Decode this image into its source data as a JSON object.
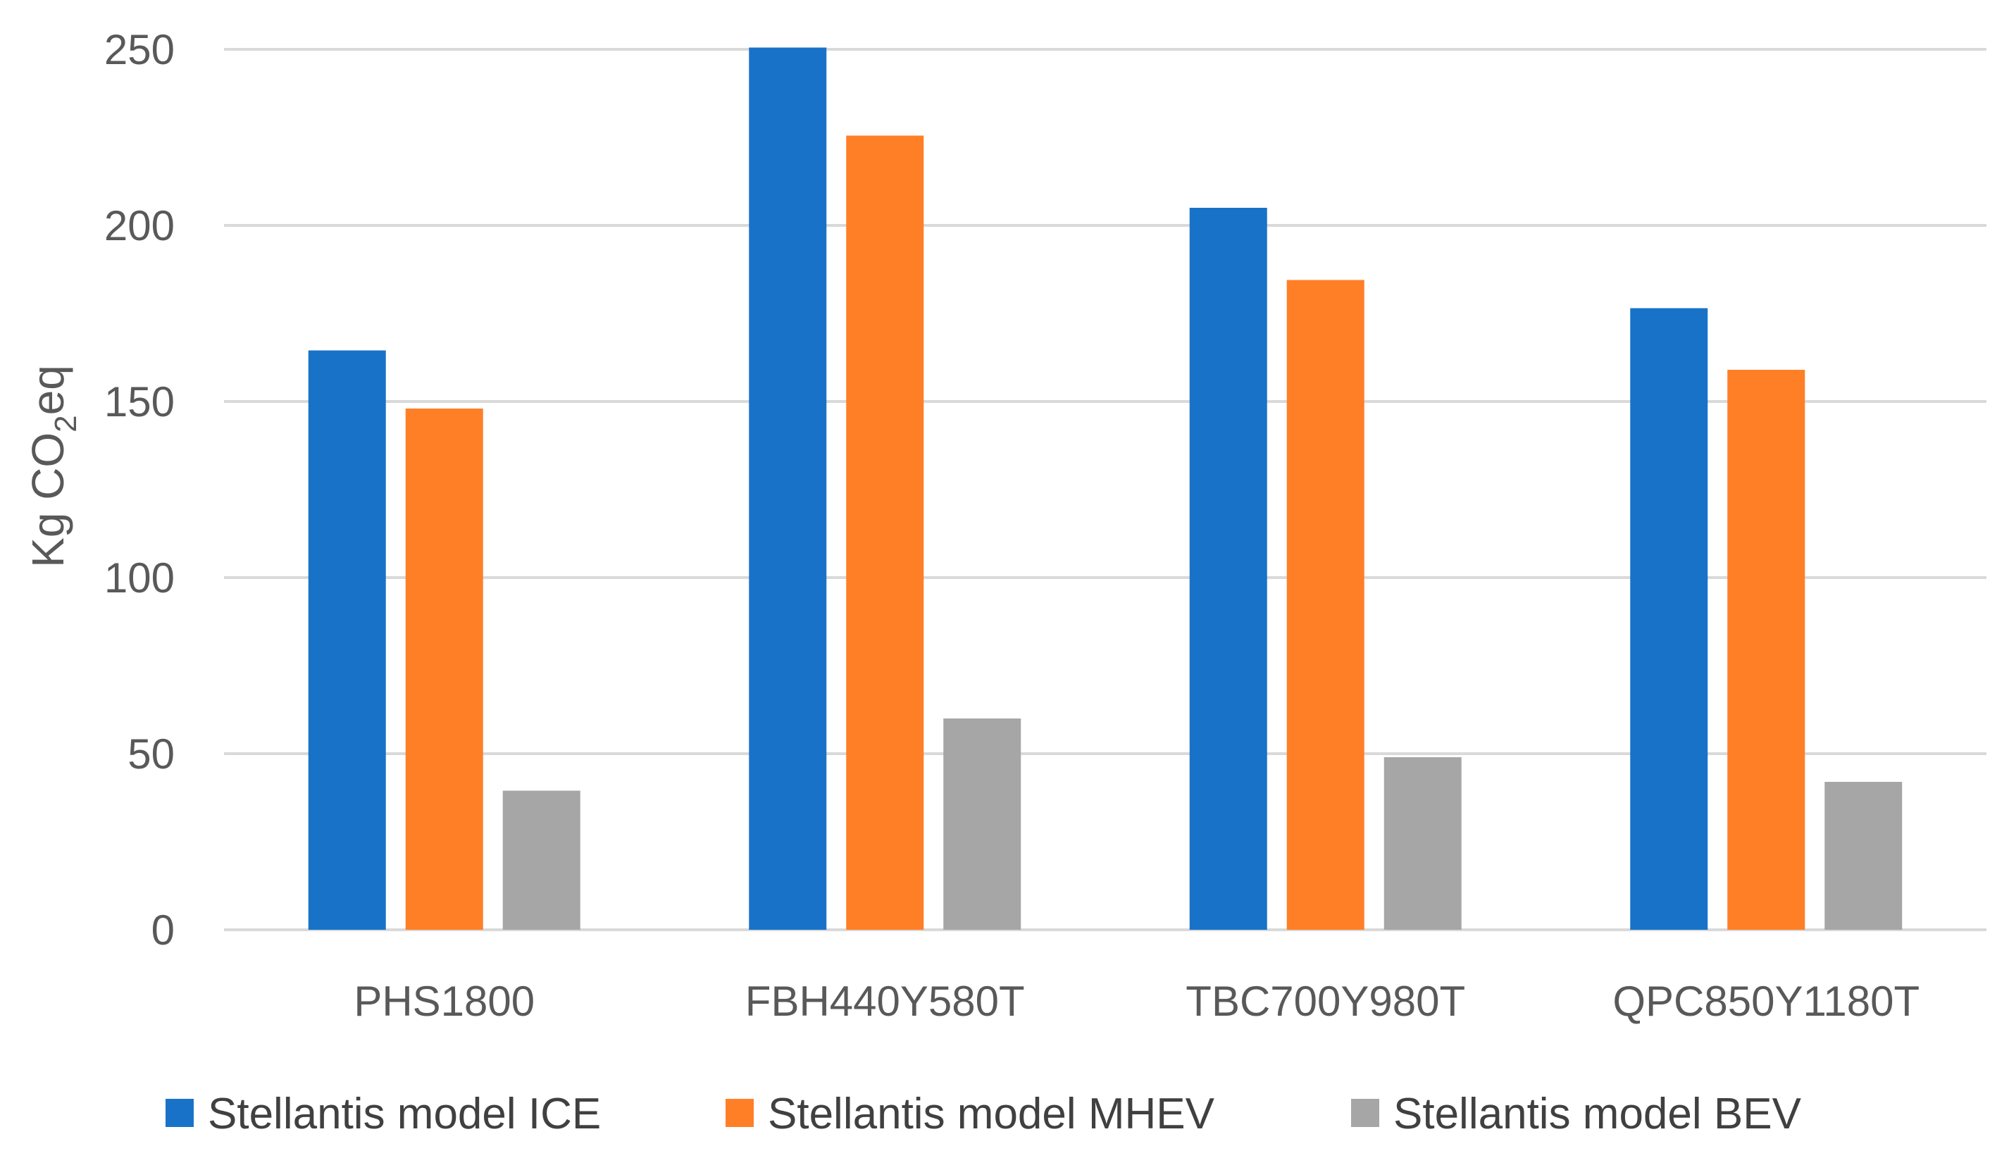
{
  "chart_data": {
    "type": "bar",
    "title": "",
    "xlabel": "",
    "ylabel": "Kg CO2eq",
    "ylabel_parts": {
      "main": "Kg CO",
      "sub": "2",
      "tail": "eq"
    },
    "ylim": [
      0,
      250
    ],
    "yticks": [
      0,
      50,
      100,
      150,
      200,
      250
    ],
    "ytick_labels": [
      "0",
      "50",
      "100",
      "150",
      "200",
      "250"
    ],
    "grid": true,
    "legend_position": "bottom",
    "categories": [
      "PHS1800",
      "FBH440Y580T",
      "TBC700Y980T",
      "QPC850Y1180T"
    ],
    "series": [
      {
        "name": "Stellantis model ICE",
        "color": "#1873C8",
        "values": [
          164.5,
          250.5,
          205,
          176.5
        ]
      },
      {
        "name": "Stellantis model MHEV",
        "color": "#FF7F27",
        "values": [
          148,
          225.5,
          184.5,
          159
        ]
      },
      {
        "name": "Stellantis model BEV",
        "color": "#A6A6A6",
        "values": [
          39.5,
          60,
          49,
          42
        ]
      }
    ]
  },
  "colors": {
    "gridline": "#D9D9D9",
    "text": "#595959"
  }
}
